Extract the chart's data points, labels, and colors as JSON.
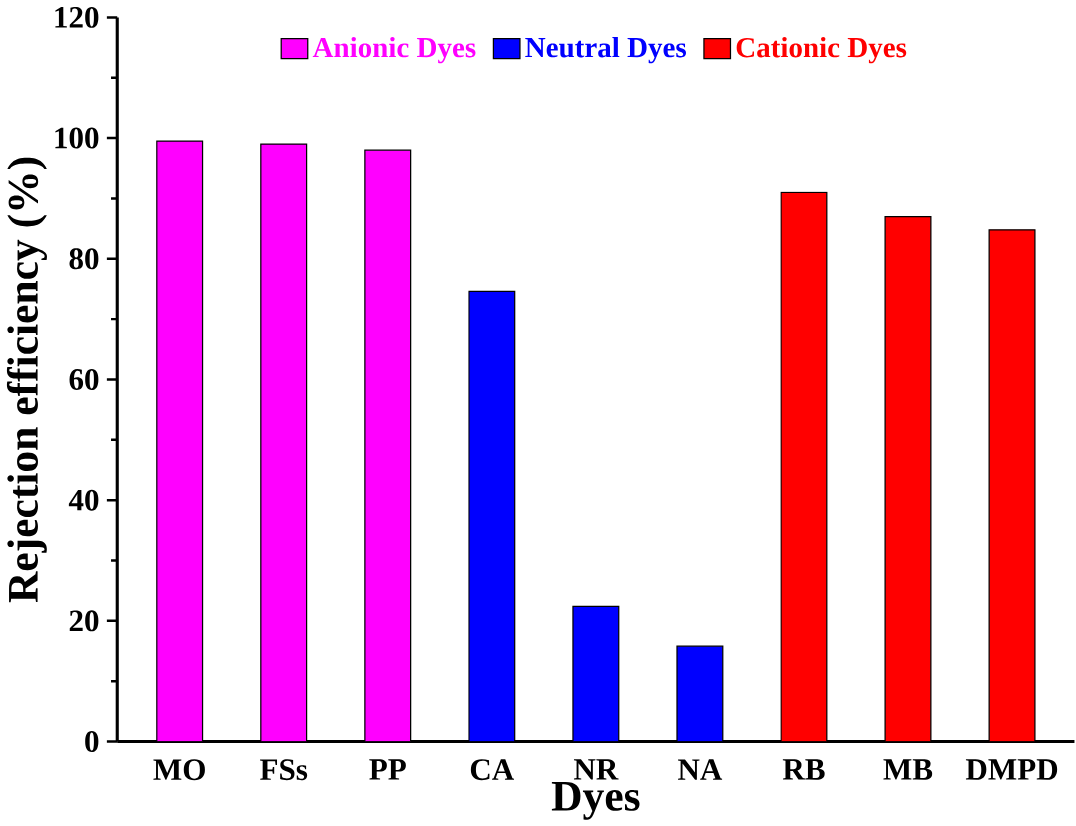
{
  "chart_data": {
    "type": "bar",
    "xlabel": "Dyes",
    "ylabel": "Rejection efficiency (%)",
    "categories": [
      "MO",
      "FSs",
      "PP",
      "CA",
      "NR",
      "NA",
      "RB",
      "MB",
      "DMPD"
    ],
    "series": [
      {
        "name": "Anionic Dyes",
        "color": "#ff00ff",
        "values": [
          99.5,
          99,
          98,
          null,
          null,
          null,
          null,
          null,
          null
        ]
      },
      {
        "name": "Neutral Dyes",
        "color": "#0000ff",
        "values": [
          null,
          null,
          null,
          74.6,
          22.4,
          15.8,
          null,
          null,
          null
        ]
      },
      {
        "name": "Cationic Dyes",
        "color": "#ff0000",
        "values": [
          null,
          null,
          null,
          null,
          null,
          null,
          91,
          87,
          84.8
        ]
      }
    ],
    "ylim": [
      0,
      120
    ],
    "yticks": [
      0,
      20,
      40,
      60,
      80,
      100,
      120
    ],
    "legend": "top",
    "grid": false
  }
}
